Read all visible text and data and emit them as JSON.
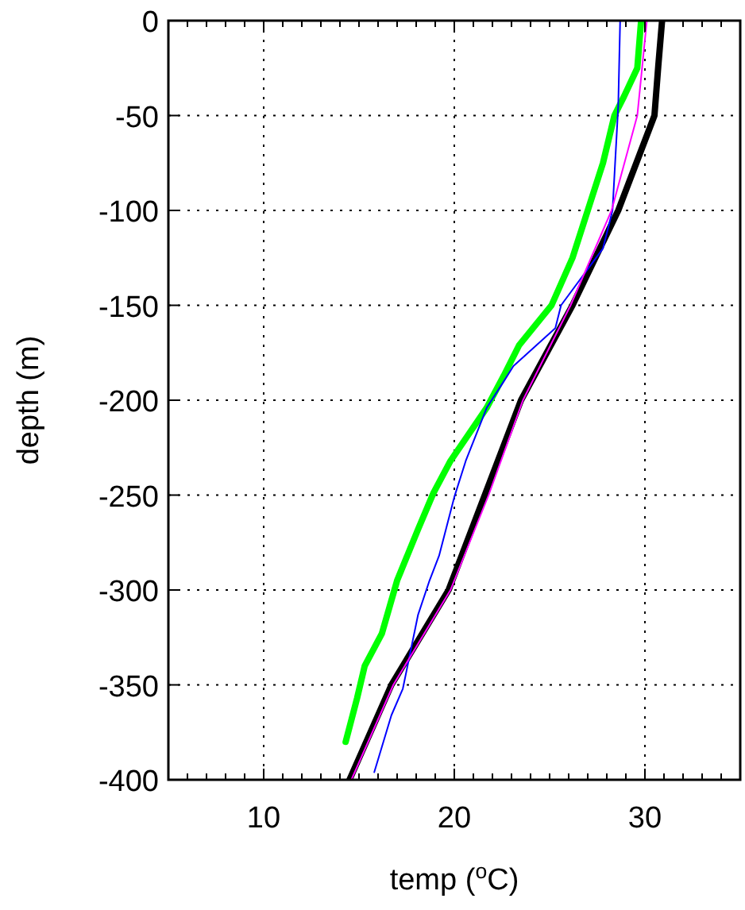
{
  "chart_data": {
    "type": "line",
    "xlabel": "temp ($^{o}$C)",
    "ylabel": "depth (m)",
    "xlim": [
      5,
      35
    ],
    "ylim": [
      -400,
      0
    ],
    "xticks": [
      {
        "value": 6,
        "label": null
      },
      {
        "value": 7,
        "label": null
      },
      {
        "value": 8,
        "label": null
      },
      {
        "value": 9,
        "label": null
      },
      10,
      {
        "value": 11,
        "label": null
      },
      {
        "value": 12,
        "label": null
      },
      {
        "value": 13,
        "label": null
      },
      {
        "value": 14,
        "label": null
      },
      {
        "value": 15,
        "label": null
      },
      {
        "value": 16,
        "label": null
      },
      {
        "value": 17,
        "label": null
      },
      {
        "value": 18,
        "label": null
      },
      {
        "value": 19,
        "label": null
      },
      20,
      {
        "value": 21,
        "label": null
      },
      {
        "value": 22,
        "label": null
      },
      {
        "value": 23,
        "label": null
      },
      {
        "value": 24,
        "label": null
      },
      {
        "value": 25,
        "label": null
      },
      {
        "value": 26,
        "label": null
      },
      {
        "value": 27,
        "label": null
      },
      {
        "value": 28,
        "label": null
      },
      {
        "value": 29,
        "label": null
      },
      30,
      {
        "value": 31,
        "label": null
      },
      {
        "value": 32,
        "label": null
      },
      {
        "value": 33,
        "label": null
      },
      {
        "value": 34,
        "label": null
      }
    ],
    "yticks": [
      -400,
      -350,
      -300,
      -250,
      -200,
      -150,
      -100,
      -50,
      0
    ],
    "grid": true,
    "marker": "none",
    "series": [
      {
        "color": "#00ff00",
        "x": [
          29.8,
          29.6,
          28.9,
          28.4,
          27.8,
          27.0,
          26.2,
          25.1,
          23.4,
          22.6,
          21.7,
          19.8,
          18.9,
          18.1,
          17.0,
          16.2,
          15.3,
          14.9,
          14.3
        ],
        "values": [
          0,
          -25,
          -40,
          -50,
          -75,
          -100,
          -125,
          -150,
          -171,
          -187,
          -204,
          -232,
          -249,
          -268,
          -295,
          -323,
          -340,
          -357,
          -380
        ]
      },
      {
        "color": "#000000",
        "x": [
          30.9,
          30.7,
          30.5,
          28.6,
          26.2,
          23.5,
          21.6,
          19.7,
          16.7,
          14.5
        ],
        "values": [
          0,
          -24,
          -50,
          -100,
          -150,
          -200,
          -250,
          -300,
          -350,
          -400
        ]
      },
      {
        "color": "#0000ff",
        "x": [
          28.7,
          28.6,
          28.3,
          27.8,
          25.6,
          25.3,
          23.1,
          22.6,
          21.7,
          20.6,
          20.0,
          19.2,
          18.7,
          18.1,
          17.3,
          16.7,
          15.8
        ],
        "values": [
          0,
          -45,
          -100,
          -120,
          -150,
          -162,
          -182,
          -190,
          -204,
          -232,
          -251,
          -282,
          -295,
          -313,
          -352,
          -366,
          -396
        ]
      },
      {
        "color": "#ff00ff",
        "x": [
          30.1,
          29.6,
          28.25,
          26.1,
          23.6,
          21.8,
          19.8,
          16.8,
          14.6
        ],
        "values": [
          0,
          -50,
          -100,
          -150,
          -200,
          -250,
          -300,
          -350,
          -400
        ]
      }
    ]
  }
}
